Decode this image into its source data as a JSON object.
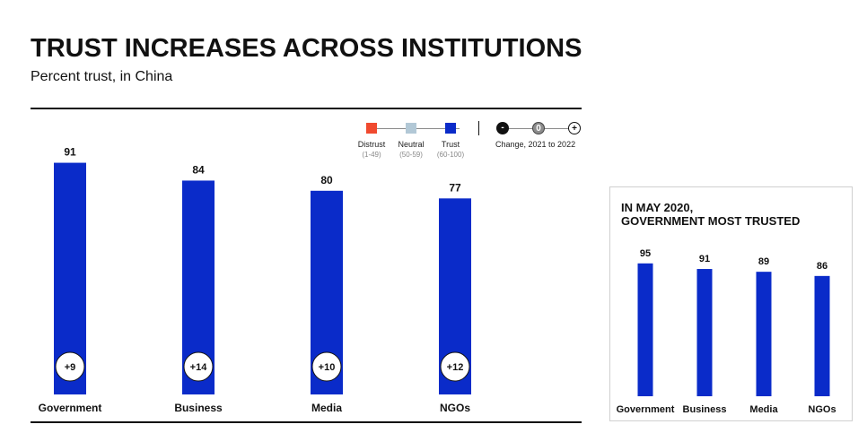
{
  "header": {
    "title": "TRUST INCREASES ACROSS INSTITUTIONS",
    "subtitle": "Percent trust, in China"
  },
  "legend": {
    "items": [
      {
        "label": "Distrust",
        "range": "(1-49)",
        "color": "#f04a2f"
      },
      {
        "label": "Neutral",
        "range": "(50-59)",
        "color": "#b2c8d6"
      },
      {
        "label": "Trust",
        "range": "(60-100)",
        "color": "#0a2bc9"
      }
    ],
    "change_symbols": [
      "-",
      "0",
      "+"
    ],
    "change_label": "Change, 2021 to 2022"
  },
  "colors": {
    "bar": "#0a2bc9",
    "distrust": "#f04a2f",
    "neutral": "#b2c8d6",
    "trust": "#0a2bc9"
  },
  "inset": {
    "title_line1": "IN MAY 2020,",
    "title_line2": "GOVERNMENT MOST TRUSTED"
  },
  "chart_data": [
    {
      "type": "bar",
      "title": "TRUST INCREASES ACROSS INSTITUTIONS",
      "subtitle": "Percent trust, in China",
      "categories": [
        "Government",
        "Business",
        "Media",
        "NGOs"
      ],
      "values": [
        91,
        84,
        80,
        77
      ],
      "changes": [
        "+9",
        "+14",
        "+10",
        "+12"
      ],
      "ylim": [
        0,
        100
      ]
    },
    {
      "type": "bar",
      "title": "IN MAY 2020, GOVERNMENT MOST TRUSTED",
      "categories": [
        "Government",
        "Business",
        "Media",
        "NGOs"
      ],
      "values": [
        95,
        91,
        89,
        86
      ],
      "ylim": [
        0,
        100
      ]
    }
  ]
}
